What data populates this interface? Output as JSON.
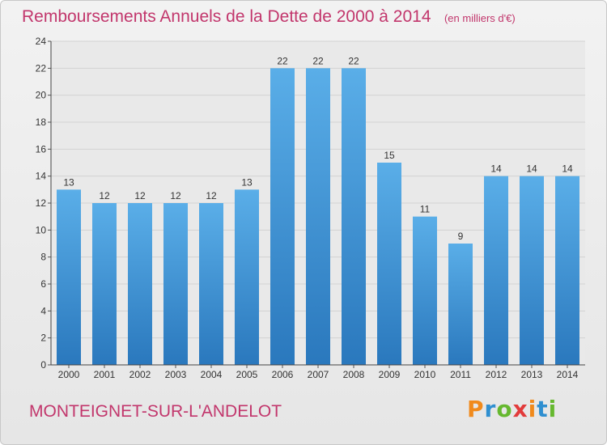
{
  "title": "Remboursements Annuels de la Dette de 2000 à 2014",
  "unit": "(en milliers d'€)",
  "commune": "MONTEIGNET-SUR-L'ANDELOT",
  "logo": {
    "text": "Proxiti"
  },
  "colors": {
    "accent": "#c2366c",
    "bar_light": "#5aaee8",
    "bar_dark": "#2a78bd"
  },
  "chart_data": {
    "type": "bar",
    "categories": [
      "2000",
      "2001",
      "2002",
      "2003",
      "2004",
      "2005",
      "2006",
      "2007",
      "2008",
      "2009",
      "2010",
      "2011",
      "2012",
      "2013",
      "2014"
    ],
    "values": [
      13,
      12,
      12,
      12,
      12,
      13,
      22,
      22,
      22,
      15,
      11,
      9,
      14,
      14,
      14
    ],
    "ylim": [
      0,
      24
    ],
    "yticks": [
      0,
      2,
      4,
      6,
      8,
      10,
      12,
      14,
      16,
      18,
      20,
      22,
      24
    ],
    "grid": true,
    "legend": "none"
  }
}
